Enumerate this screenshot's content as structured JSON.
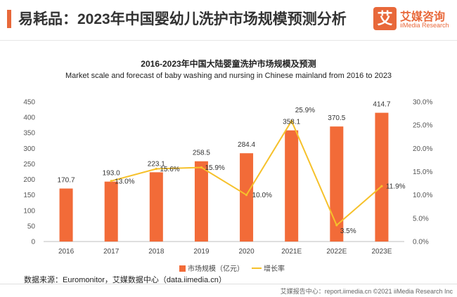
{
  "header": {
    "title": "易耗品：2023年中国婴幼儿洗护市场规模预测分析",
    "logo_mark": "艾",
    "logo_cn": "艾媒咨询",
    "logo_en": "iiMedia Research"
  },
  "colors": {
    "accent": "#e8683a",
    "bar": "#f26b38",
    "line": "#f6c12b"
  },
  "chart_data": {
    "type": "bar",
    "title": "2016-2023年中国大陆婴童洗护市场规模及预测",
    "subtitle": "Market scale and forecast of baby washing and nursing in Chinese mainland from 2016 to 2023",
    "categories": [
      "2016",
      "2017",
      "2018",
      "2019",
      "2020",
      "2021E",
      "2022E",
      "2023E"
    ],
    "series": [
      {
        "name": "市场规模（亿元）",
        "type": "bar",
        "axis": "left",
        "values": [
          170.7,
          193.0,
          223.1,
          258.5,
          284.4,
          358.1,
          370.5,
          414.7
        ],
        "labels": [
          "170.7",
          "193.0",
          "223.1",
          "258.5",
          "284.4",
          "358.1",
          "370.5",
          "414.7"
        ]
      },
      {
        "name": "增长率",
        "type": "line",
        "axis": "right",
        "values": [
          null,
          13.0,
          15.6,
          15.9,
          10.0,
          25.9,
          3.5,
          11.9
        ],
        "labels": [
          "",
          "13.0%",
          "15.6%",
          "15.9%",
          "10.0%",
          "25.9%",
          "3.5%",
          "11.9%"
        ]
      }
    ],
    "y_left": {
      "min": 0,
      "max": 450,
      "ticks": [
        "0",
        "50",
        "100",
        "150",
        "200",
        "250",
        "300",
        "350",
        "400",
        "450"
      ]
    },
    "y_right": {
      "min": 0,
      "max": 30,
      "ticks": [
        "0.0%",
        "5.0%",
        "10.0%",
        "15.0%",
        "20.0%",
        "25.0%",
        "30.0%"
      ]
    },
    "grid": false,
    "legend_position": "bottom"
  },
  "legend": {
    "bar_label": "市场规模（亿元）",
    "line_label": "增长率"
  },
  "source": "数据来源：Euromonitor，艾媒数据中心（data.iimedia.cn）",
  "footer": "艾媒报告中心：report.iimedia.cn  ©2021  iiMedia Research  Inc"
}
